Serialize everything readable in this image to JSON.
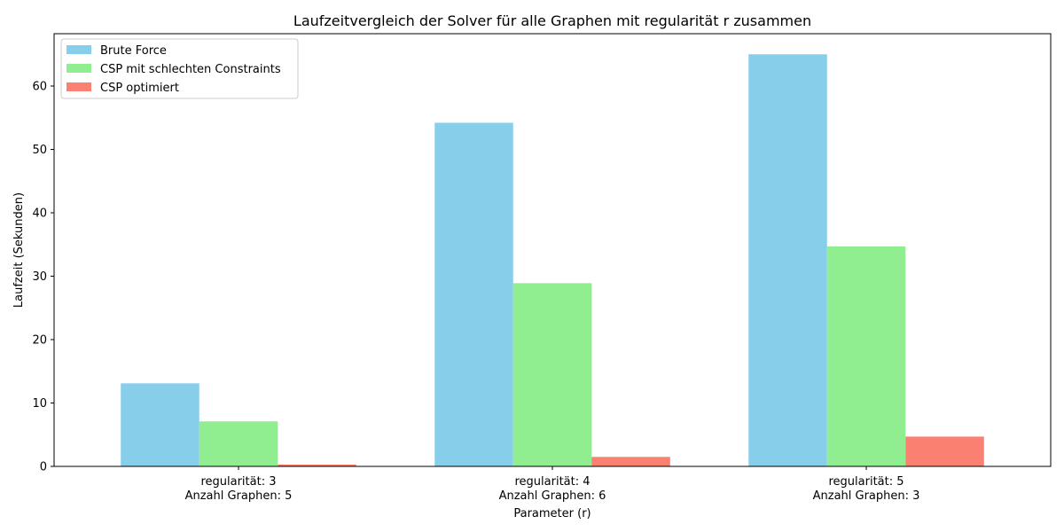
{
  "chart_data": {
    "type": "bar",
    "title": "Laufzeitvergleich der Solver für alle Graphen mit regularität r zusammen",
    "xlabel": "Parameter (r)",
    "ylabel": "Laufzeit (Sekunden)",
    "categories": [
      [
        "regularität: 3",
        "Anzahl Graphen: 5"
      ],
      [
        "regularität: 4",
        "Anzahl Graphen: 6"
      ],
      [
        "regularität: 5",
        "Anzahl Graphen: 3"
      ]
    ],
    "series": [
      {
        "name": "Brute Force",
        "color": "#87ceeb",
        "values": [
          13.1,
          54.2,
          65.0
        ]
      },
      {
        "name": "CSP mit schlechten Constraints",
        "color": "#90ee90",
        "values": [
          7.1,
          28.9,
          34.7
        ]
      },
      {
        "name": "CSP optimiert",
        "color": "#fa8072",
        "values": [
          0.3,
          1.5,
          4.7
        ]
      }
    ],
    "ylim": [
      0,
      68.25
    ],
    "yticks": [
      0,
      10,
      20,
      30,
      40,
      50,
      60
    ],
    "legend_position": "top-left",
    "grid": false
  }
}
